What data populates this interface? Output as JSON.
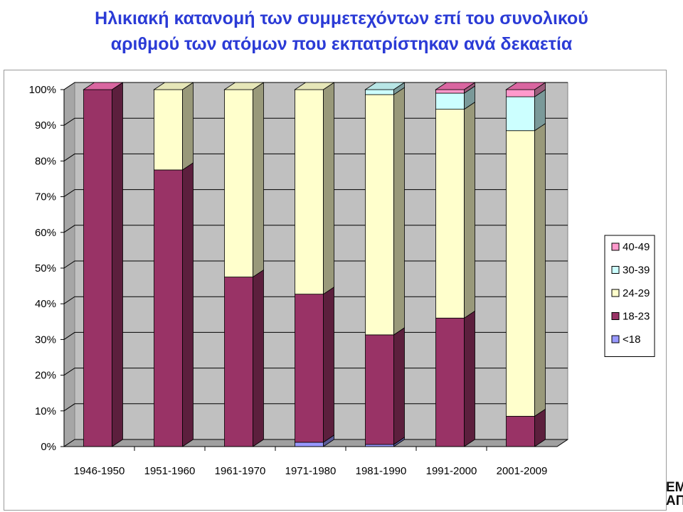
{
  "title": {
    "line1": "Ηλικιακή κατανομή των συμμετεχόντων επί του συνολικού",
    "line2": "αριθμού των ατόμων που εκπατρίστηκαν ανά δεκαετία"
  },
  "logo": {
    "line1": "ΕΜ",
    "line2": "ΑΠ"
  },
  "chart_data": {
    "type": "bar",
    "stacked": true,
    "percent": true,
    "title": "",
    "xlabel": "",
    "ylabel": "",
    "ylim": [
      0,
      100
    ],
    "yticks": [
      "0%",
      "10%",
      "20%",
      "30%",
      "40%",
      "50%",
      "60%",
      "70%",
      "80%",
      "90%",
      "100%"
    ],
    "grid": true,
    "legend_position": "right",
    "categories": [
      "1946-1950",
      "1951-1960",
      "1961-1970",
      "1971-1980",
      "1981-1990",
      "1991-2000",
      "2001-2009"
    ],
    "series": [
      {
        "name": "<18",
        "color": "#9999ff",
        "values": [
          0,
          0,
          0,
          1.2,
          0.6,
          0,
          0
        ]
      },
      {
        "name": "18-23",
        "color": "#993366",
        "values": [
          100,
          77.5,
          47.5,
          41.5,
          30.7,
          36.0,
          8.5
        ]
      },
      {
        "name": "24-29",
        "color": "#ffffcc",
        "values": [
          0,
          22.5,
          52.5,
          57.3,
          67.3,
          58.5,
          80.0
        ]
      },
      {
        "name": "30-39",
        "color": "#ccffff",
        "values": [
          0,
          0,
          0,
          0,
          1.4,
          4.5,
          9.5
        ]
      },
      {
        "name": "40-49",
        "color": "#ff99cc",
        "values": [
          0,
          0,
          0,
          0,
          0,
          1.0,
          2.0
        ]
      }
    ]
  }
}
